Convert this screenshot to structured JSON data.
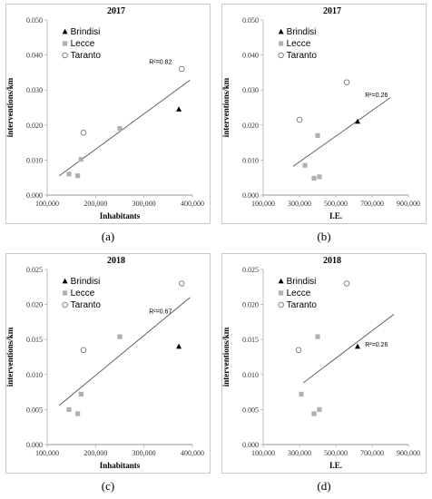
{
  "legend_labels": [
    "Brindisi",
    "Lecce",
    "Taranto"
  ],
  "colors": {
    "brindisi": "#000000",
    "lecce": "#b0b0b0",
    "taranto": "#777777",
    "trend": "#555555"
  },
  "chart_data": [
    {
      "type": "scatter",
      "caption": "(a)",
      "title": "2017",
      "xlabel": "Inhabitants",
      "ylabel": "interventions/km",
      "xlim": [
        100000,
        400000
      ],
      "ylim": [
        0,
        0.05
      ],
      "x_ticks": [
        100000,
        200000,
        300000,
        400000
      ],
      "x_tick_labels": [
        "100,000",
        "200,000",
        "300,000",
        "400,000"
      ],
      "y_ticks": [
        0,
        0.01,
        0.02,
        0.03,
        0.04,
        0.05
      ],
      "y_tick_labels": [
        "0.000",
        "0.010",
        "0.020",
        "0.030",
        "0.040",
        "0.050"
      ],
      "annotation": "R²=0.82",
      "legend_position": "top-left",
      "series": [
        {
          "name": "Brindisi",
          "marker": "triangle",
          "points": [
            [
              372000,
              0.0245
            ]
          ]
        },
        {
          "name": "Lecce",
          "marker": "square",
          "points": [
            [
              145000,
              0.006
            ],
            [
              163000,
              0.0055
            ],
            [
              170000,
              0.0102
            ],
            [
              250000,
              0.019
            ]
          ]
        },
        {
          "name": "Taranto",
          "marker": "circle",
          "points": [
            [
              175000,
              0.0178
            ],
            [
              378000,
              0.036
            ]
          ]
        }
      ],
      "trendline": {
        "x": [
          125000,
          395000
        ],
        "y": [
          0.0055,
          0.0328
        ]
      }
    },
    {
      "type": "scatter",
      "caption": "(b)",
      "title": "2017",
      "xlabel": "I.E.",
      "ylabel": "interventions/km",
      "xlim": [
        100000,
        900000
      ],
      "ylim": [
        0,
        0.05
      ],
      "x_ticks": [
        100000,
        300000,
        500000,
        700000,
        900000
      ],
      "x_tick_labels": [
        "100,000",
        "300,000",
        "500,000",
        "700,000",
        "900,000"
      ],
      "y_ticks": [
        0,
        0.01,
        0.02,
        0.03,
        0.04,
        0.05
      ],
      "y_tick_labels": [
        "0.000",
        "0.010",
        "0.020",
        "0.030",
        "0.040",
        "0.050"
      ],
      "annotation": "R²=0.26",
      "legend_position": "top-right",
      "series": [
        {
          "name": "Brindisi",
          "marker": "triangle",
          "points": [
            [
              620000,
              0.021
            ]
          ]
        },
        {
          "name": "Lecce",
          "marker": "square",
          "points": [
            [
              330000,
              0.0085
            ],
            [
              380000,
              0.0048
            ],
            [
              400000,
              0.017
            ],
            [
              410000,
              0.0052
            ]
          ]
        },
        {
          "name": "Taranto",
          "marker": "circle",
          "points": [
            [
              300000,
              0.0215
            ],
            [
              560000,
              0.0322
            ]
          ]
        }
      ],
      "trendline": {
        "x": [
          265000,
          800000
        ],
        "y": [
          0.0082,
          0.0278
        ]
      }
    },
    {
      "type": "scatter",
      "caption": "(c)",
      "title": "2018",
      "xlabel": "Inhabitants",
      "ylabel": "interventions/km",
      "xlim": [
        100000,
        400000
      ],
      "ylim": [
        0,
        0.025
      ],
      "x_ticks": [
        100000,
        200000,
        300000,
        400000
      ],
      "x_tick_labels": [
        "100,000",
        "200,000",
        "300,000",
        "400,000"
      ],
      "y_ticks": [
        0,
        0.005,
        0.01,
        0.015,
        0.02,
        0.025
      ],
      "y_tick_labels": [
        "0.000",
        "0.005",
        "0.010",
        "0.015",
        "0.020",
        "0.025"
      ],
      "annotation": "R²=0.67",
      "legend_position": "top-left",
      "series": [
        {
          "name": "Brindisi",
          "marker": "triangle",
          "points": [
            [
              372000,
              0.014
            ]
          ]
        },
        {
          "name": "Lecce",
          "marker": "square",
          "points": [
            [
              145000,
              0.005
            ],
            [
              163000,
              0.0044
            ],
            [
              170000,
              0.0072
            ],
            [
              250000,
              0.0154
            ]
          ]
        },
        {
          "name": "Taranto",
          "marker": "circle",
          "points": [
            [
              175000,
              0.0135
            ],
            [
              378000,
              0.023
            ]
          ]
        }
      ],
      "trendline": {
        "x": [
          125000,
          395000
        ],
        "y": [
          0.0056,
          0.021
        ]
      }
    },
    {
      "type": "scatter",
      "caption": "(d)",
      "title": "2018",
      "xlabel": "I.E.",
      "ylabel": "interventions/km",
      "xlim": [
        100000,
        900000
      ],
      "ylim": [
        0,
        0.025
      ],
      "x_ticks": [
        100000,
        300000,
        500000,
        700000,
        900000
      ],
      "x_tick_labels": [
        "100,000",
        "300,000",
        "500,000",
        "700,000",
        "900,000"
      ],
      "y_ticks": [
        0,
        0.005,
        0.01,
        0.015,
        0.02,
        0.025
      ],
      "y_tick_labels": [
        "0.000",
        "0.005",
        "0.010",
        "0.015",
        "0.020",
        "0.025"
      ],
      "annotation": "R²=0.26",
      "legend_position": "top-left",
      "series": [
        {
          "name": "Brindisi",
          "marker": "triangle",
          "points": [
            [
              620000,
              0.014
            ]
          ]
        },
        {
          "name": "Lecce",
          "marker": "square",
          "points": [
            [
              310000,
              0.0072
            ],
            [
              380000,
              0.0044
            ],
            [
              400000,
              0.0154
            ],
            [
              410000,
              0.005
            ]
          ]
        },
        {
          "name": "Taranto",
          "marker": "circle",
          "points": [
            [
              295000,
              0.0135
            ],
            [
              560000,
              0.023
            ]
          ]
        }
      ],
      "trendline": {
        "x": [
          320000,
          820000
        ],
        "y": [
          0.0088,
          0.0186
        ]
      }
    }
  ]
}
